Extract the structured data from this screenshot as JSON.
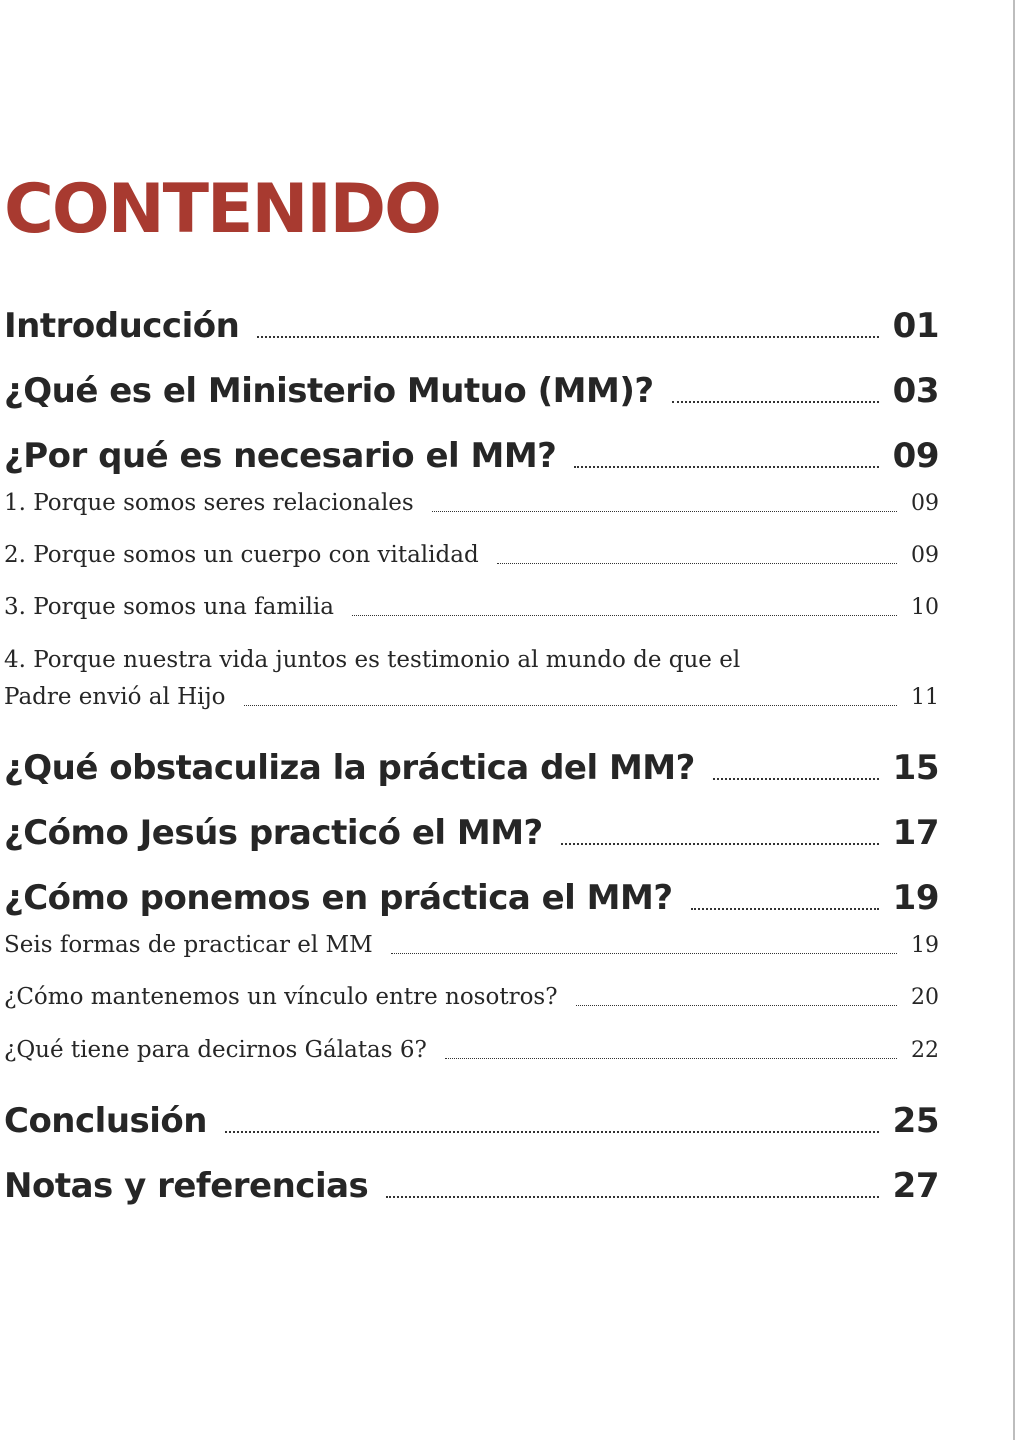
{
  "toc": {
    "title": "CONTENIDO",
    "entries": [
      {
        "label": "Introducción",
        "page": "01"
      },
      {
        "label": "¿Qué es el Ministerio Mutuo (MM)?",
        "page": "03"
      },
      {
        "label": "¿Por qué es necesario el MM?",
        "page": "09"
      },
      {
        "label": "1. Porque somos seres relacionales",
        "page": "09"
      },
      {
        "label": "2. Porque somos un cuerpo con vitalidad",
        "page": "09"
      },
      {
        "label": "3. Porque somos una familia",
        "page": "10"
      },
      {
        "label_line1": "4. Porque nuestra vida juntos es testimonio al mundo de que el",
        "label_line2": "Padre envió al Hijo",
        "page": "11"
      },
      {
        "label": "¿Qué obstaculiza la práctica del MM?",
        "page": "15"
      },
      {
        "label": "¿Cómo Jesús practicó el MM?",
        "page": "17"
      },
      {
        "label": "¿Cómo ponemos en práctica el MM?",
        "page": "19"
      },
      {
        "label": "Seis formas de practicar el MM",
        "page": "19"
      },
      {
        "label": "¿Cómo mantenemos un vínculo entre nosotros?",
        "page": "20"
      },
      {
        "label": "¿Qué tiene para decirnos Gálatas 6?",
        "page": "22"
      },
      {
        "label": "Conclusión",
        "page": "25"
      },
      {
        "label": "Notas y referencias",
        "page": "27"
      }
    ]
  }
}
